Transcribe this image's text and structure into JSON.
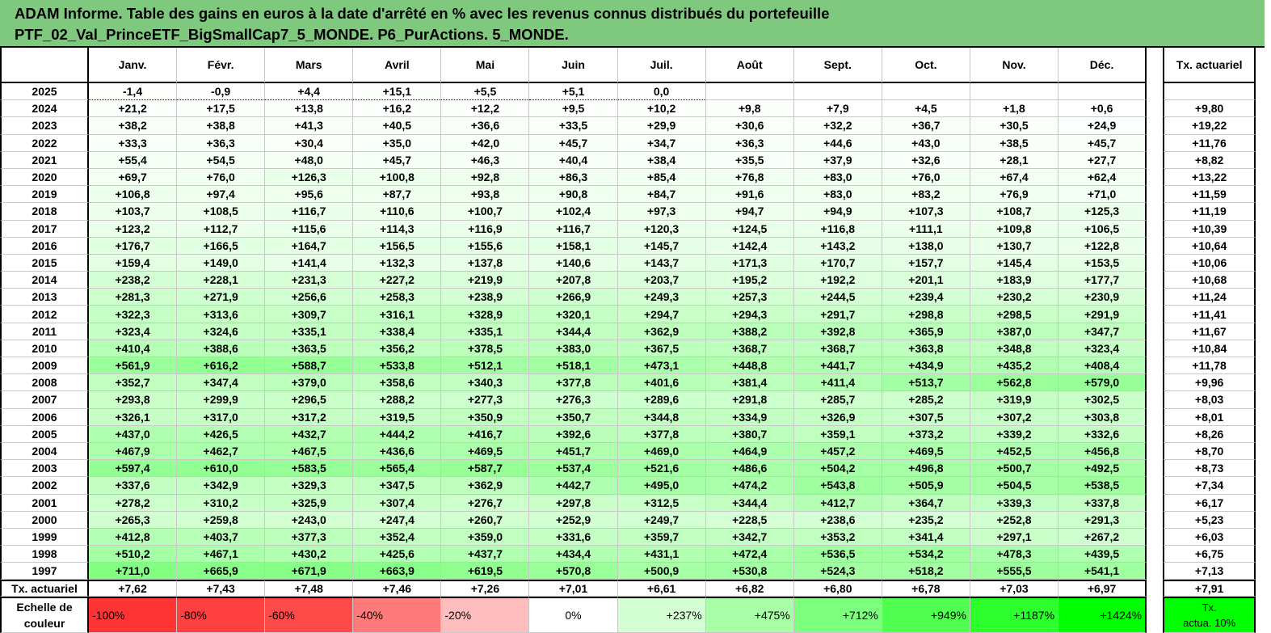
{
  "title": {
    "line1": "ADAM Informe. Table des gains en euros à la date d'arrêté en % avec les revenus connus distribués du portefeuille",
    "line2": "PTF_02_Val_PrinceETF_BigSmallCap7_5_MONDE. P6_PurActions. 5_MONDE."
  },
  "months": [
    "Janv.",
    "Févr.",
    "Mars",
    "Avril",
    "Mai",
    "Juin",
    "Juil.",
    "Août",
    "Sept.",
    "Oct.",
    "Nov.",
    "Déc."
  ],
  "tx_header": "Tx. actuariel",
  "rows": [
    {
      "year": "2025",
      "values": [
        "-1,4",
        "-0,9",
        "+4,4",
        "+15,1",
        "+5,5",
        "+5,1",
        "0,0",
        "",
        "",
        "",
        "",
        ""
      ],
      "tx": ""
    },
    {
      "year": "2024",
      "values": [
        "+21,2",
        "+17,5",
        "+13,8",
        "+16,2",
        "+12,2",
        "+9,5",
        "+10,2",
        "+9,8",
        "+7,9",
        "+4,5",
        "+1,8",
        "+0,6"
      ],
      "tx": "+9,80"
    },
    {
      "year": "2023",
      "values": [
        "+38,2",
        "+38,8",
        "+41,3",
        "+40,5",
        "+36,6",
        "+33,5",
        "+29,9",
        "+30,6",
        "+32,2",
        "+36,7",
        "+30,5",
        "+24,9"
      ],
      "tx": "+19,22"
    },
    {
      "year": "2022",
      "values": [
        "+33,3",
        "+36,3",
        "+30,4",
        "+35,0",
        "+42,0",
        "+45,7",
        "+34,7",
        "+36,3",
        "+44,6",
        "+43,0",
        "+38,5",
        "+45,7"
      ],
      "tx": "+11,76"
    },
    {
      "year": "2021",
      "values": [
        "+55,4",
        "+54,5",
        "+48,0",
        "+45,7",
        "+46,3",
        "+40,4",
        "+38,4",
        "+35,5",
        "+37,9",
        "+32,6",
        "+28,1",
        "+27,7"
      ],
      "tx": "+8,82"
    },
    {
      "year": "2020",
      "values": [
        "+69,7",
        "+76,0",
        "+126,3",
        "+100,8",
        "+92,8",
        "+86,3",
        "+85,4",
        "+76,8",
        "+83,0",
        "+76,0",
        "+67,4",
        "+62,4"
      ],
      "tx": "+13,22"
    },
    {
      "year": "2019",
      "values": [
        "+106,8",
        "+97,4",
        "+95,6",
        "+87,7",
        "+93,8",
        "+90,8",
        "+84,7",
        "+91,6",
        "+83,0",
        "+83,2",
        "+76,9",
        "+71,0"
      ],
      "tx": "+11,59"
    },
    {
      "year": "2018",
      "values": [
        "+103,7",
        "+108,5",
        "+116,7",
        "+110,6",
        "+100,7",
        "+102,4",
        "+97,3",
        "+94,7",
        "+94,9",
        "+107,3",
        "+108,7",
        "+125,3"
      ],
      "tx": "+11,19"
    },
    {
      "year": "2017",
      "values": [
        "+123,2",
        "+112,7",
        "+115,6",
        "+114,3",
        "+116,9",
        "+116,7",
        "+120,3",
        "+124,5",
        "+116,8",
        "+111,1",
        "+109,8",
        "+106,5"
      ],
      "tx": "+10,39"
    },
    {
      "year": "2016",
      "values": [
        "+176,7",
        "+166,5",
        "+164,7",
        "+156,5",
        "+155,6",
        "+158,1",
        "+145,7",
        "+142,4",
        "+143,2",
        "+138,0",
        "+130,7",
        "+122,8"
      ],
      "tx": "+10,64"
    },
    {
      "year": "2015",
      "values": [
        "+159,4",
        "+149,0",
        "+141,4",
        "+132,3",
        "+137,8",
        "+140,6",
        "+143,7",
        "+171,3",
        "+170,7",
        "+157,7",
        "+145,4",
        "+153,5"
      ],
      "tx": "+10,06"
    },
    {
      "year": "2014",
      "values": [
        "+238,2",
        "+228,1",
        "+231,3",
        "+227,2",
        "+219,9",
        "+207,8",
        "+203,7",
        "+195,2",
        "+192,2",
        "+201,1",
        "+183,9",
        "+177,7"
      ],
      "tx": "+10,68"
    },
    {
      "year": "2013",
      "values": [
        "+281,3",
        "+271,9",
        "+256,6",
        "+258,3",
        "+238,9",
        "+266,9",
        "+249,3",
        "+257,3",
        "+244,5",
        "+239,4",
        "+230,2",
        "+230,9"
      ],
      "tx": "+11,24"
    },
    {
      "year": "2012",
      "values": [
        "+322,3",
        "+313,6",
        "+309,7",
        "+316,1",
        "+328,9",
        "+320,1",
        "+294,7",
        "+294,3",
        "+291,7",
        "+298,8",
        "+298,5",
        "+291,9"
      ],
      "tx": "+11,41"
    },
    {
      "year": "2011",
      "values": [
        "+323,4",
        "+324,6",
        "+335,1",
        "+338,4",
        "+335,1",
        "+344,4",
        "+362,9",
        "+388,2",
        "+392,8",
        "+365,9",
        "+387,0",
        "+347,7"
      ],
      "tx": "+11,67"
    },
    {
      "year": "2010",
      "values": [
        "+410,4",
        "+388,6",
        "+363,5",
        "+356,2",
        "+378,5",
        "+383,0",
        "+367,5",
        "+368,7",
        "+368,7",
        "+363,8",
        "+348,8",
        "+323,4"
      ],
      "tx": "+10,84"
    },
    {
      "year": "2009",
      "values": [
        "+561,9",
        "+616,2",
        "+588,7",
        "+533,8",
        "+512,1",
        "+518,1",
        "+473,1",
        "+448,8",
        "+441,7",
        "+434,9",
        "+435,2",
        "+408,4"
      ],
      "tx": "+11,78"
    },
    {
      "year": "2008",
      "values": [
        "+352,7",
        "+347,4",
        "+379,0",
        "+358,6",
        "+340,3",
        "+377,8",
        "+401,6",
        "+381,4",
        "+411,4",
        "+513,7",
        "+562,8",
        "+579,0"
      ],
      "tx": "+9,96"
    },
    {
      "year": "2007",
      "values": [
        "+293,8",
        "+299,9",
        "+296,5",
        "+288,2",
        "+277,3",
        "+276,3",
        "+289,6",
        "+291,8",
        "+285,7",
        "+285,2",
        "+319,9",
        "+302,5"
      ],
      "tx": "+8,03"
    },
    {
      "year": "2006",
      "values": [
        "+326,1",
        "+317,0",
        "+317,2",
        "+319,5",
        "+350,9",
        "+350,7",
        "+344,8",
        "+334,9",
        "+326,9",
        "+307,5",
        "+307,2",
        "+303,8"
      ],
      "tx": "+8,01"
    },
    {
      "year": "2005",
      "values": [
        "+437,0",
        "+426,5",
        "+432,7",
        "+444,2",
        "+416,7",
        "+392,6",
        "+377,8",
        "+380,7",
        "+359,1",
        "+373,2",
        "+339,2",
        "+332,6"
      ],
      "tx": "+8,26"
    },
    {
      "year": "2004",
      "values": [
        "+467,9",
        "+462,7",
        "+467,5",
        "+436,6",
        "+469,5",
        "+451,7",
        "+469,0",
        "+464,9",
        "+457,2",
        "+469,5",
        "+452,5",
        "+456,8"
      ],
      "tx": "+8,70"
    },
    {
      "year": "2003",
      "values": [
        "+597,4",
        "+610,0",
        "+583,5",
        "+565,4",
        "+587,7",
        "+537,4",
        "+521,6",
        "+486,6",
        "+504,2",
        "+496,8",
        "+500,7",
        "+492,5"
      ],
      "tx": "+8,73"
    },
    {
      "year": "2002",
      "values": [
        "+337,6",
        "+342,9",
        "+329,3",
        "+347,5",
        "+362,9",
        "+442,7",
        "+495,0",
        "+474,2",
        "+543,8",
        "+505,9",
        "+504,5",
        "+538,5"
      ],
      "tx": "+7,34"
    },
    {
      "year": "2001",
      "values": [
        "+278,2",
        "+310,2",
        "+325,9",
        "+307,4",
        "+276,7",
        "+297,8",
        "+312,5",
        "+344,4",
        "+412,7",
        "+364,7",
        "+339,3",
        "+337,8"
      ],
      "tx": "+6,17"
    },
    {
      "year": "2000",
      "values": [
        "+265,3",
        "+259,8",
        "+243,0",
        "+247,4",
        "+260,7",
        "+252,9",
        "+249,7",
        "+228,5",
        "+238,6",
        "+235,2",
        "+252,8",
        "+291,3"
      ],
      "tx": "+5,23"
    },
    {
      "year": "1999",
      "values": [
        "+412,8",
        "+403,7",
        "+377,3",
        "+352,4",
        "+359,0",
        "+331,6",
        "+359,7",
        "+342,7",
        "+353,2",
        "+341,4",
        "+297,1",
        "+267,2"
      ],
      "tx": "+6,03"
    },
    {
      "year": "1998",
      "values": [
        "+510,2",
        "+467,1",
        "+430,2",
        "+425,6",
        "+437,7",
        "+434,4",
        "+431,1",
        "+472,4",
        "+536,5",
        "+534,2",
        "+478,3",
        "+439,5"
      ],
      "tx": "+6,75"
    },
    {
      "year": "1997",
      "values": [
        "+711,0",
        "+665,9",
        "+671,9",
        "+663,9",
        "+619,5",
        "+570,8",
        "+500,9",
        "+530,8",
        "+524,3",
        "+518,2",
        "+555,5",
        "+541,1"
      ],
      "tx": "+7,13"
    }
  ],
  "footer": {
    "label": "Tx. actuariel",
    "values": [
      "+7,62",
      "+7,43",
      "+7,48",
      "+7,46",
      "+7,26",
      "+7,01",
      "+6,61",
      "+6,82",
      "+6,80",
      "+6,78",
      "+7,03",
      "+6,97"
    ],
    "tx": "+7,91"
  },
  "scale": {
    "label_line1": "Echelle de",
    "label_line2": "couleur",
    "steps": [
      {
        "text": "-100%",
        "color": "#ff3535"
      },
      {
        "text": "-80%",
        "color": "#ff4040"
      },
      {
        "text": "-60%",
        "color": "#ff4a4a"
      },
      {
        "text": "-40%",
        "color": "#ff7b7b"
      },
      {
        "text": "-20%",
        "color": "#ffbdbd"
      },
      {
        "text": "0%",
        "color": "#ffffff"
      },
      {
        "text": "+237%",
        "color": "#d3ffd3"
      },
      {
        "text": "+475%",
        "color": "#a8ffa8"
      },
      {
        "text": "+712%",
        "color": "#7cff7c"
      },
      {
        "text": "+949%",
        "color": "#51ff51"
      },
      {
        "text": "+1187%",
        "color": "#2cff2c"
      },
      {
        "text": "+1424%",
        "color": "#00ff00"
      }
    ],
    "tx_line1": "Tx.",
    "tx_line2": "actua. 10%",
    "tx_color": "#00ff00"
  }
}
